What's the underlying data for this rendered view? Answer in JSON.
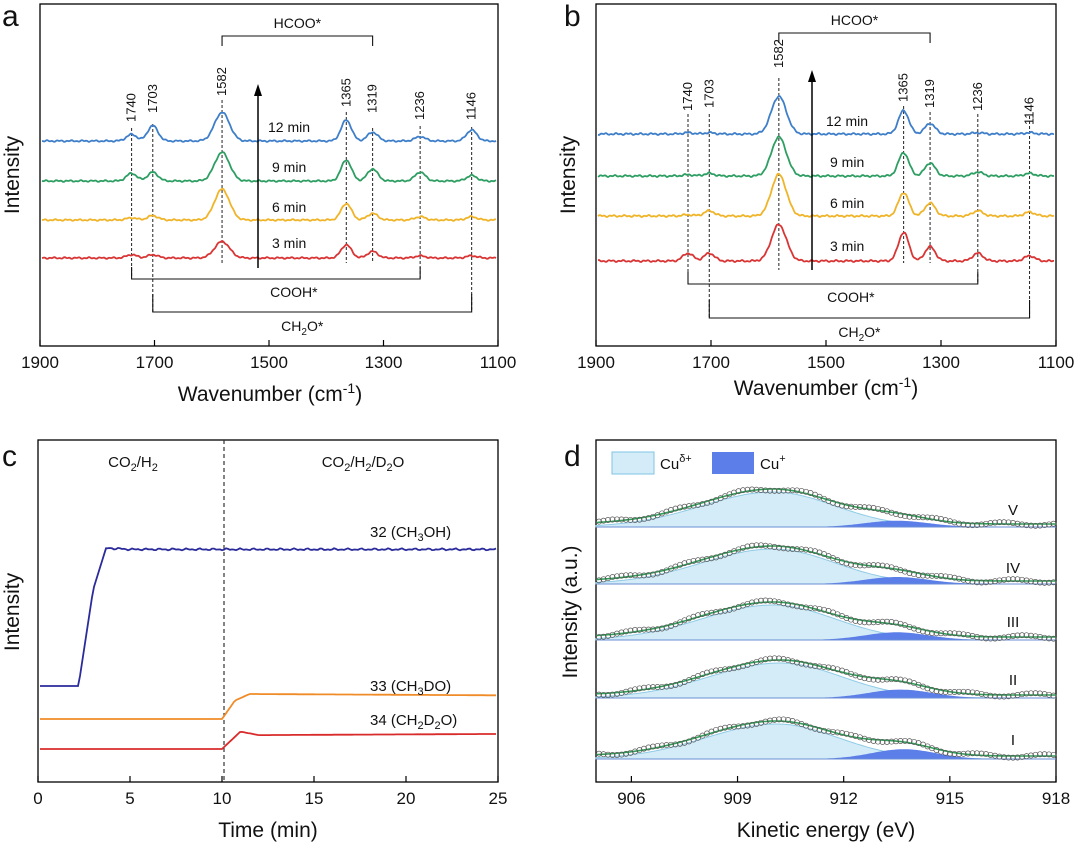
{
  "figure": {
    "panels": [
      {
        "letter": "a",
        "ylabel": "Intensity",
        "xlabel": "Wavenumber (cm",
        "xlabel_sup": "-1",
        "xlabel_tail": ")",
        "xlim": [
          1900,
          1100
        ],
        "xticks": [
          "1900",
          "1700",
          "1500",
          "1300",
          "1100"
        ],
        "peaks": [
          "1740",
          "1703",
          "1582",
          "1365",
          "1319",
          "1236",
          "1146"
        ],
        "peak_positions": [
          1740,
          1703,
          1582,
          1365,
          1319,
          1236,
          1146
        ],
        "brackets": {
          "top": "HCOO*",
          "mid": "COOH*",
          "bottom": "CH",
          "bottom_sub": "2",
          "bottom_tail": "O*"
        }
      },
      {
        "letter": "b",
        "ylabel": "Intensity",
        "xlabel": "Wavenumber (cm",
        "xlabel_sup": "-1",
        "xlabel_tail": ")",
        "xlim": [
          1900,
          1100
        ],
        "xticks": [
          "1900",
          "1700",
          "1500",
          "1300",
          "1100"
        ],
        "peaks": [
          "1740",
          "1703",
          "1582",
          "1365",
          "1319",
          "1236",
          "1146"
        ],
        "peak_positions": [
          1740,
          1703,
          1582,
          1365,
          1319,
          1236,
          1146
        ],
        "brackets": {
          "top": "HCOO*",
          "mid": "COOH*",
          "bottom": "CH",
          "bottom_sub": "2",
          "bottom_tail": "O*"
        }
      },
      {
        "letter": "c",
        "ylabel": "Intensity",
        "xlabel": "Time (min)",
        "xlim": [
          0,
          25
        ],
        "xticks": [
          "0",
          "5",
          "10",
          "15",
          "20",
          "25"
        ],
        "region_left": {
          "a": "CO",
          "a_sub": "2",
          "b": "/H",
          "b_sub": "2"
        },
        "region_right": {
          "a": "CO",
          "a_sub": "2",
          "b": "/H",
          "b_sub": "2",
          "c": "/D",
          "c_sub": "2",
          "d": "O"
        }
      },
      {
        "letter": "d",
        "ylabel": "Intensity (a.u.)",
        "xlabel": "Kinetic energy (eV)",
        "xlim": [
          905,
          918
        ],
        "xticks": [
          "906",
          "909",
          "912",
          "915",
          "918"
        ],
        "legend": [
          {
            "base": "Cu",
            "sup": "δ+",
            "color": "#d4ecf7"
          },
          {
            "base": "Cu",
            "sup": "+",
            "color": "#5b7ee8"
          }
        ],
        "labels": [
          "V",
          "IV",
          "III",
          "II",
          "I"
        ]
      }
    ]
  },
  "chart_data": [
    {
      "panel": "a",
      "type": "line",
      "title": "",
      "xlabel": "Wavenumber (cm-1)",
      "ylabel": "Intensity",
      "x_range": [
        1900,
        1100
      ],
      "series": [
        {
          "name": "12 min",
          "color": "#3f7fc9",
          "peaks": [
            [
              1740,
              0.6
            ],
            [
              1703,
              1.4
            ],
            [
              1582,
              2.6
            ],
            [
              1365,
              1.9
            ],
            [
              1319,
              0.8
            ],
            [
              1236,
              0.4
            ],
            [
              1146,
              1.0
            ]
          ]
        },
        {
          "name": "9 min",
          "color": "#2e9e63",
          "peaks": [
            [
              1740,
              0.7
            ],
            [
              1703,
              0.8
            ],
            [
              1582,
              2.6
            ],
            [
              1365,
              1.9
            ],
            [
              1319,
              1.1
            ],
            [
              1236,
              0.8
            ],
            [
              1146,
              0.5
            ]
          ]
        },
        {
          "name": "6 min",
          "color": "#f0b429",
          "peaks": [
            [
              1740,
              0.2
            ],
            [
              1703,
              0.4
            ],
            [
              1582,
              2.8
            ],
            [
              1365,
              1.5
            ],
            [
              1319,
              0.6
            ],
            [
              1236,
              0.3
            ],
            [
              1146,
              0.3
            ]
          ]
        },
        {
          "name": "3 min",
          "color": "#d93535",
          "peaks": [
            [
              1740,
              0.3
            ],
            [
              1703,
              0.3
            ],
            [
              1582,
              1.5
            ],
            [
              1365,
              1.2
            ],
            [
              1319,
              0.6
            ],
            [
              1236,
              0.2
            ],
            [
              1146,
              0.2
            ]
          ]
        }
      ]
    },
    {
      "panel": "b",
      "type": "line",
      "title": "",
      "xlabel": "Wavenumber (cm-1)",
      "ylabel": "Intensity",
      "x_range": [
        1900,
        1100
      ],
      "series": [
        {
          "name": "12 min",
          "color": "#3f7fc9",
          "peaks": [
            [
              1740,
              0.1
            ],
            [
              1703,
              0.1
            ],
            [
              1582,
              2.9
            ],
            [
              1365,
              1.8
            ],
            [
              1319,
              0.8
            ],
            [
              1236,
              0.1
            ],
            [
              1146,
              0.1
            ]
          ]
        },
        {
          "name": "9 min",
          "color": "#2e9e63",
          "peaks": [
            [
              1740,
              0.1
            ],
            [
              1703,
              0.2
            ],
            [
              1582,
              3.0
            ],
            [
              1365,
              1.8
            ],
            [
              1319,
              1.0
            ],
            [
              1236,
              0.3
            ],
            [
              1146,
              0.2
            ]
          ]
        },
        {
          "name": "6 min",
          "color": "#f0b429",
          "peaks": [
            [
              1740,
              0.1
            ],
            [
              1703,
              0.4
            ],
            [
              1582,
              3.2
            ],
            [
              1365,
              1.8
            ],
            [
              1319,
              1.0
            ],
            [
              1236,
              0.4
            ],
            [
              1146,
              0.3
            ]
          ]
        },
        {
          "name": "3 min",
          "color": "#d93535",
          "peaks": [
            [
              1740,
              0.6
            ],
            [
              1703,
              0.6
            ],
            [
              1582,
              2.8
            ],
            [
              1365,
              2.2
            ],
            [
              1319,
              1.1
            ],
            [
              1236,
              0.6
            ],
            [
              1146,
              0.4
            ]
          ]
        }
      ]
    },
    {
      "panel": "c",
      "type": "line",
      "title": "",
      "xlabel": "Time (min)",
      "ylabel": "Intensity",
      "x_range": [
        0,
        25
      ],
      "divider_x": 10,
      "series": [
        {
          "name": "32 (CH3OH)",
          "label": "32 (CH",
          "label_sub": "3",
          "label_tail": "OH)",
          "color": "#2b2b9c",
          "points": [
            [
              0,
              0.0
            ],
            [
              2.2,
              0.0
            ],
            [
              3.0,
              0.7
            ],
            [
              3.7,
              1.0
            ],
            [
              5,
              0.99
            ],
            [
              10,
              0.99
            ],
            [
              25,
              0.99
            ]
          ]
        },
        {
          "name": "33 (CH3DO)",
          "label": "33 (CH",
          "label_sub": "3",
          "label_tail": "DO)",
          "color": "#f08c28",
          "points": [
            [
              0,
              0.0
            ],
            [
              10,
              0.0
            ],
            [
              10.7,
              0.14
            ],
            [
              11.5,
              0.19
            ],
            [
              25,
              0.18
            ]
          ]
        },
        {
          "name": "34 (CH2D2O)",
          "label": "34 (CH",
          "label_sub": "2",
          "label_tail": "D",
          "label_sub2": "2",
          "label_tail2": "O)",
          "color": "#d92b2b",
          "points": [
            [
              0,
              0.0
            ],
            [
              10,
              0.0
            ],
            [
              11,
              0.15
            ],
            [
              12,
              0.12
            ],
            [
              25,
              0.13
            ]
          ]
        }
      ]
    },
    {
      "panel": "d",
      "type": "area",
      "title": "",
      "xlabel": "Kinetic energy (eV)",
      "ylabel": "Intensity (a.u.)",
      "x_range": [
        905,
        918
      ],
      "series": [
        {
          "name": "V",
          "cu_delta_center": 910.0,
          "cu_delta_height": 1.0,
          "cu_plus_center": 913.5,
          "cu_plus_height": 0.18
        },
        {
          "name": "IV",
          "cu_delta_center": 910.0,
          "cu_delta_height": 1.0,
          "cu_plus_center": 913.5,
          "cu_plus_height": 0.2
        },
        {
          "name": "III",
          "cu_delta_center": 910.0,
          "cu_delta_height": 1.0,
          "cu_plus_center": 913.5,
          "cu_plus_height": 0.22
        },
        {
          "name": "II",
          "cu_delta_center": 910.2,
          "cu_delta_height": 1.0,
          "cu_plus_center": 913.6,
          "cu_plus_height": 0.24
        },
        {
          "name": "I",
          "cu_delta_center": 910.1,
          "cu_delta_height": 1.0,
          "cu_plus_center": 913.7,
          "cu_plus_height": 0.28
        }
      ]
    }
  ]
}
